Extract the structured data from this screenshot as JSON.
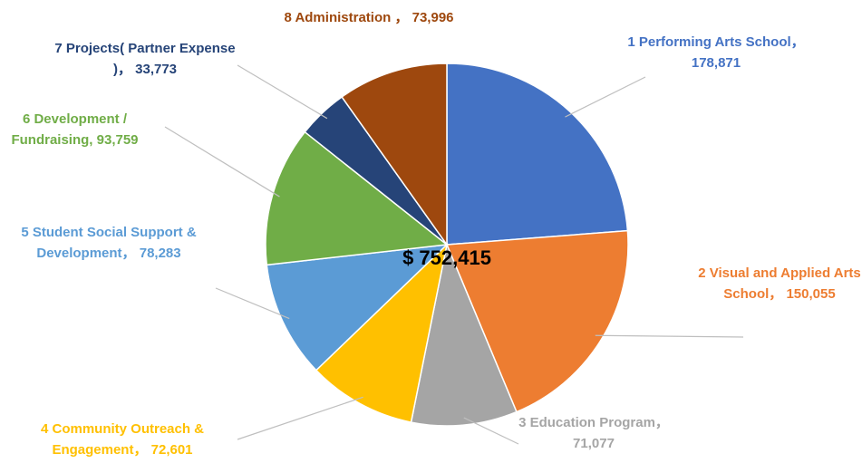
{
  "chart_data": {
    "type": "pie",
    "center_label": "$ 752,415",
    "categories": [
      "1 Performing Arts School，",
      "2 Visual and Applied Arts School，",
      "3 Education Program，",
      "4 Community Outreach & Engagement，",
      "5 Student Social Support & Development，",
      "6 Development / Fundraising,",
      "7 Projects( Partner Expense )，",
      "8 Administration ，"
    ],
    "values": [
      178871,
      150055,
      71077,
      72601,
      78283,
      93759,
      33773,
      73996
    ],
    "value_labels": [
      "178,871",
      "150,055",
      "71,077",
      "72,601",
      "78,283",
      "93,759",
      "33,773",
      "73,996"
    ],
    "colors": [
      "#4472c4",
      "#ed7d31",
      "#a5a5a5",
      "#ffc000",
      "#5b9bd5",
      "#70ad47",
      "#264478",
      "#9e480e"
    ]
  }
}
